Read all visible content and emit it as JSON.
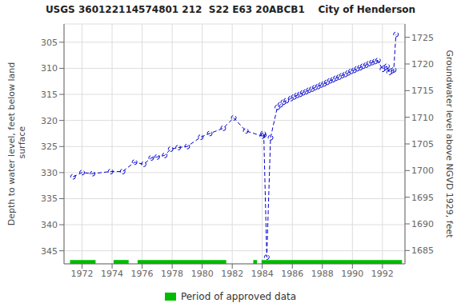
{
  "chart_data": {
    "type": "line",
    "title": "USGS 360122114574801 212  S22 E63 20ABCB1    City of Henderson",
    "ylabel": "Depth to water level, feet below land\n surface",
    "y2label": "Groundwater level above NGVD 1929, feet",
    "x": [
      1971.4,
      1972.0,
      1972.7,
      1973.9,
      1974.7,
      1975.5,
      1976.1,
      1976.6,
      1977.0,
      1977.5,
      1977.9,
      1978.4,
      1979.0,
      1979.9,
      1980.5,
      1981.4,
      1982.1,
      1982.9,
      1984.0,
      1984.05,
      1984.1,
      1984.3,
      1984.55,
      1985.0,
      1985.2,
      1985.4,
      1985.6,
      1985.9,
      1986.1,
      1986.3,
      1986.5,
      1986.7,
      1986.9,
      1987.1,
      1987.3,
      1987.5,
      1987.7,
      1987.9,
      1988.1,
      1988.3,
      1988.5,
      1988.7,
      1988.9,
      1989.1,
      1989.3,
      1989.5,
      1989.7,
      1989.9,
      1990.1,
      1990.3,
      1990.5,
      1990.7,
      1990.9,
      1991.1,
      1991.3,
      1991.5,
      1991.7,
      1992.0,
      1992.15,
      1992.3,
      1992.45,
      1992.6,
      1992.75,
      1992.9
    ],
    "series": [
      {
        "color": "#0000cc",
        "line_style": "dashed",
        "marker": "circle",
        "values": [
          330.8,
          330.0,
          330.2,
          329.8,
          329.8,
          328.0,
          328.4,
          327.2,
          327.0,
          326.7,
          325.5,
          325.2,
          325.0,
          323.2,
          322.5,
          321.5,
          319.5,
          322.0,
          323.0,
          322.5,
          322.8,
          346.2,
          323.3,
          317.5,
          317.0,
          316.5,
          316.2,
          315.8,
          315.5,
          315.2,
          315.0,
          314.7,
          314.5,
          314.2,
          314.0,
          313.7,
          313.5,
          313.2,
          313.0,
          312.7,
          312.4,
          312.2,
          311.9,
          311.7,
          311.4,
          311.2,
          310.9,
          310.6,
          310.4,
          310.1,
          309.9,
          309.6,
          309.4,
          309.1,
          308.9,
          308.7,
          308.5,
          310.2,
          309.9,
          309.6,
          310.8,
          310.5,
          310.3,
          303.5
        ]
      }
    ],
    "xlim": [
      1970.8,
      1993.5
    ],
    "xticks": [
      1972,
      1974,
      1976,
      1978,
      1980,
      1982,
      1984,
      1986,
      1988,
      1990,
      1992
    ],
    "ylim": [
      347.5,
      301.5
    ],
    "yticks": [
      305,
      310,
      315,
      320,
      325,
      330,
      335,
      340,
      345
    ],
    "y2lim": [
      1682.5,
      1727.5
    ],
    "y2ticks": [
      1685,
      1690,
      1695,
      1700,
      1705,
      1710,
      1715,
      1720,
      1725
    ],
    "grid": true,
    "legend": "bottom",
    "approved_periods": {
      "name": "Period of approved data",
      "color": "#00bb00",
      "segments": [
        [
          1971.2,
          1972.9
        ],
        [
          1974.1,
          1975.1
        ],
        [
          1975.7,
          1981.6
        ],
        [
          1983.4,
          1983.65
        ],
        [
          1983.95,
          1993.3
        ]
      ]
    }
  }
}
